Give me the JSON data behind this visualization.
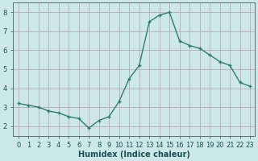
{
  "x": [
    0,
    1,
    2,
    3,
    4,
    5,
    6,
    7,
    8,
    9,
    10,
    11,
    12,
    13,
    14,
    15,
    16,
    17,
    18,
    19,
    20,
    21,
    22,
    23
  ],
  "y": [
    3.2,
    3.1,
    3.0,
    2.8,
    2.7,
    2.5,
    2.4,
    1.9,
    2.3,
    2.5,
    3.3,
    4.5,
    5.2,
    7.5,
    7.85,
    8.0,
    6.5,
    6.25,
    6.1,
    5.75,
    5.4,
    5.2,
    4.3,
    4.1
  ],
  "line_color": "#2e7d6e",
  "bg_color": "#cce8e8",
  "grid_color": "#c0a8b0",
  "xlabel": "Humidex (Indice chaleur)",
  "xlabel_color": "#1a5050",
  "tick_color": "#1a5050",
  "ylim": [
    1.5,
    8.5
  ],
  "xlim": [
    -0.5,
    23.5
  ],
  "yticks": [
    2,
    3,
    4,
    5,
    6,
    7,
    8
  ],
  "xticks": [
    0,
    1,
    2,
    3,
    4,
    5,
    6,
    7,
    8,
    9,
    10,
    11,
    12,
    13,
    14,
    15,
    16,
    17,
    18,
    19,
    20,
    21,
    22,
    23
  ],
  "xlabel_fontsize": 7.0,
  "tick_fontsize": 6.0,
  "marker": "+",
  "marker_size": 3.5,
  "linewidth": 1.0
}
